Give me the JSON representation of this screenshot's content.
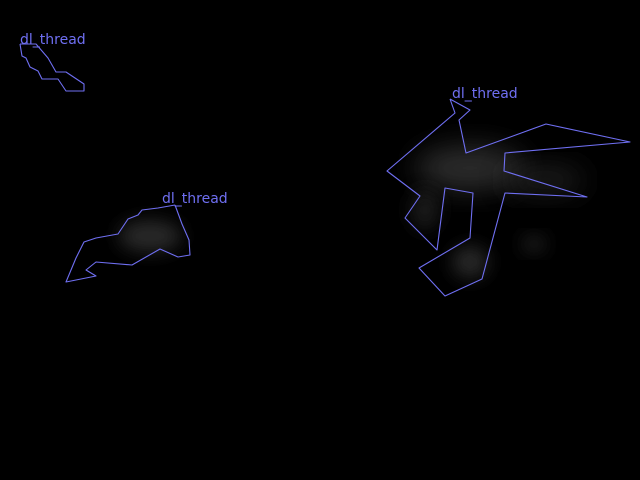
{
  "scene": {
    "background_color": "#000000",
    "annotation_color": "#6f6ff2",
    "regions": [
      {
        "label": "dl_thread"
      },
      {
        "label": "dl_thread"
      },
      {
        "label": "dl_thread"
      }
    ]
  }
}
